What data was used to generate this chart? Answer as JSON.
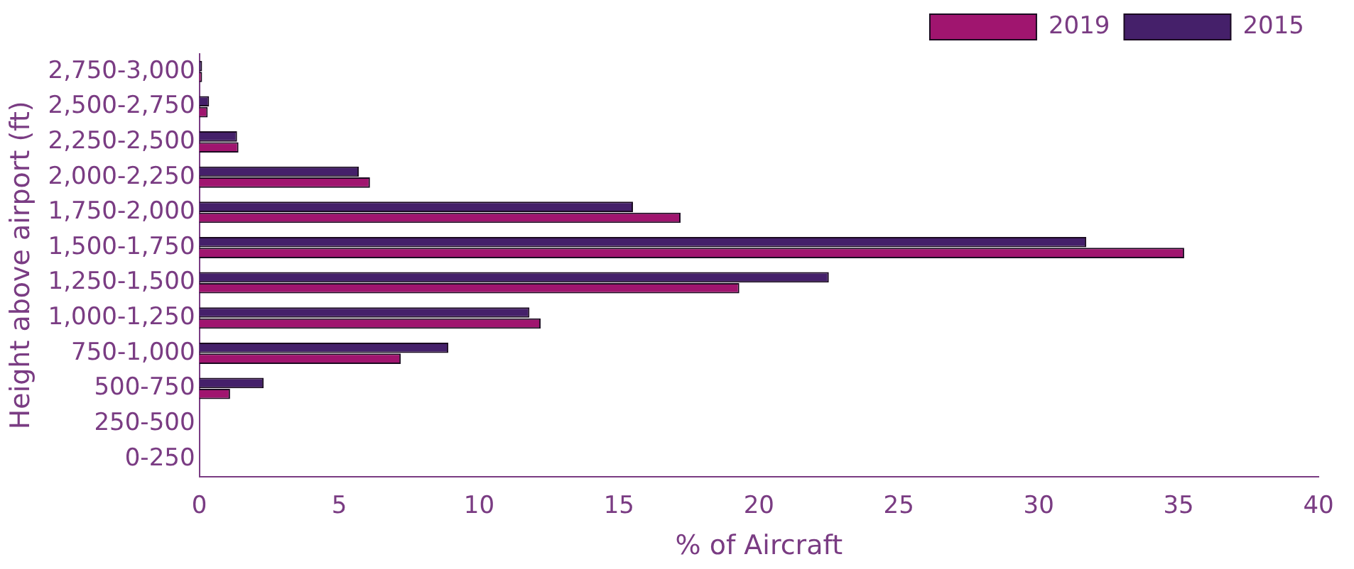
{
  "chart_data": {
    "type": "bar",
    "orientation": "horizontal",
    "ylabel": "Height above airport (ft)",
    "xlabel": "% of Aircraft",
    "categories": [
      "2,750-3,000",
      "2,500-2,750",
      "2,250-2,500",
      "2,000-2,250",
      "1,750-2,000",
      "1,500-1,750",
      "1,250-1,500",
      "1,000-1,250",
      "750-1,000",
      "500-750",
      "250-500",
      "0-250"
    ],
    "series": [
      {
        "name": "2015",
        "color": "#45206a",
        "values": [
          0.1,
          0.35,
          1.35,
          5.7,
          15.5,
          31.7,
          22.5,
          11.8,
          8.9,
          2.3,
          0,
          0
        ]
      },
      {
        "name": "2019",
        "color": "#a0156f",
        "values": [
          0.1,
          0.3,
          1.4,
          6.1,
          17.2,
          35.2,
          19.3,
          12.2,
          7.2,
          1.1,
          0,
          0
        ]
      }
    ],
    "xlim": [
      0,
      40
    ],
    "xticks": [
      0,
      5,
      10,
      15,
      20,
      25,
      30,
      35,
      40
    ],
    "grid": false,
    "legend": "top right"
  }
}
